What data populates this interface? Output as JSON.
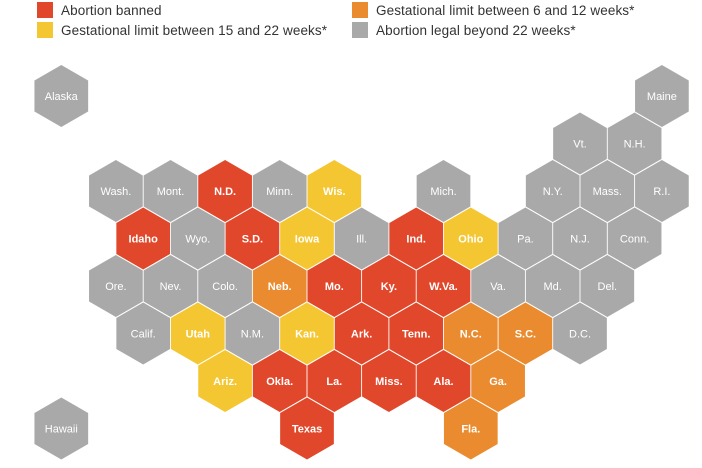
{
  "legend": [
    {
      "key": "banned",
      "label": "Abortion banned",
      "color": "#e0472b"
    },
    {
      "key": "limit_6_12",
      "label": "Gestational limit between 6 and 12 weeks*",
      "color": "#e98b2e"
    },
    {
      "key": "limit_15_22",
      "label": "Gestational limit between 15 and 22 weeks*",
      "color": "#f4c732"
    },
    {
      "key": "legal",
      "label": "Abortion legal beyond 22 weeks*",
      "color": "#a9a9a9"
    }
  ],
  "states": [
    {
      "abbr": "Alaska",
      "status": "legal",
      "col": 1,
      "row": 0
    },
    {
      "abbr": "Maine",
      "status": "legal",
      "col": 23,
      "row": 0
    },
    {
      "abbr": "Vt.",
      "status": "legal",
      "col": 20,
      "row": 1
    },
    {
      "abbr": "N.H.",
      "status": "legal",
      "col": 22,
      "row": 1
    },
    {
      "abbr": "Wash.",
      "status": "legal",
      "col": 3,
      "row": 2
    },
    {
      "abbr": "Mont.",
      "status": "legal",
      "col": 5,
      "row": 2
    },
    {
      "abbr": "N.D.",
      "status": "banned",
      "col": 7,
      "row": 2
    },
    {
      "abbr": "Minn.",
      "status": "legal",
      "col": 9,
      "row": 2
    },
    {
      "abbr": "Wis.",
      "status": "limit_15_22",
      "col": 11,
      "row": 2
    },
    {
      "abbr": "Mich.",
      "status": "legal",
      "col": 15,
      "row": 2
    },
    {
      "abbr": "N.Y.",
      "status": "legal",
      "col": 19,
      "row": 2
    },
    {
      "abbr": "Mass.",
      "status": "legal",
      "col": 21,
      "row": 2
    },
    {
      "abbr": "R.I.",
      "status": "legal",
      "col": 23,
      "row": 2
    },
    {
      "abbr": "Idaho",
      "status": "banned",
      "col": 4,
      "row": 3
    },
    {
      "abbr": "Wyo.",
      "status": "legal",
      "col": 6,
      "row": 3
    },
    {
      "abbr": "S.D.",
      "status": "banned",
      "col": 8,
      "row": 3
    },
    {
      "abbr": "Iowa",
      "status": "limit_15_22",
      "col": 10,
      "row": 3
    },
    {
      "abbr": "Ill.",
      "status": "legal",
      "col": 12,
      "row": 3
    },
    {
      "abbr": "Ind.",
      "status": "banned",
      "col": 14,
      "row": 3
    },
    {
      "abbr": "Ohio",
      "status": "limit_15_22",
      "col": 16,
      "row": 3
    },
    {
      "abbr": "Pa.",
      "status": "legal",
      "col": 18,
      "row": 3
    },
    {
      "abbr": "N.J.",
      "status": "legal",
      "col": 20,
      "row": 3
    },
    {
      "abbr": "Conn.",
      "status": "legal",
      "col": 22,
      "row": 3
    },
    {
      "abbr": "Ore.",
      "status": "legal",
      "col": 3,
      "row": 4
    },
    {
      "abbr": "Nev.",
      "status": "legal",
      "col": 5,
      "row": 4
    },
    {
      "abbr": "Colo.",
      "status": "legal",
      "col": 7,
      "row": 4
    },
    {
      "abbr": "Neb.",
      "status": "limit_6_12",
      "col": 9,
      "row": 4
    },
    {
      "abbr": "Mo.",
      "status": "banned",
      "col": 11,
      "row": 4
    },
    {
      "abbr": "Ky.",
      "status": "banned",
      "col": 13,
      "row": 4
    },
    {
      "abbr": "W.Va.",
      "status": "banned",
      "col": 15,
      "row": 4
    },
    {
      "abbr": "Va.",
      "status": "legal",
      "col": 17,
      "row": 4
    },
    {
      "abbr": "Md.",
      "status": "legal",
      "col": 19,
      "row": 4
    },
    {
      "abbr": "Del.",
      "status": "legal",
      "col": 21,
      "row": 4
    },
    {
      "abbr": "Calif.",
      "status": "legal",
      "col": 4,
      "row": 5
    },
    {
      "abbr": "Utah",
      "status": "limit_15_22",
      "col": 6,
      "row": 5
    },
    {
      "abbr": "N.M.",
      "status": "legal",
      "col": 8,
      "row": 5
    },
    {
      "abbr": "Kan.",
      "status": "limit_15_22",
      "col": 10,
      "row": 5
    },
    {
      "abbr": "Ark.",
      "status": "banned",
      "col": 12,
      "row": 5
    },
    {
      "abbr": "Tenn.",
      "status": "banned",
      "col": 14,
      "row": 5
    },
    {
      "abbr": "N.C.",
      "status": "limit_6_12",
      "col": 16,
      "row": 5
    },
    {
      "abbr": "S.C.",
      "status": "limit_6_12",
      "col": 18,
      "row": 5
    },
    {
      "abbr": "D.C.",
      "status": "legal",
      "col": 20,
      "row": 5
    },
    {
      "abbr": "Ariz.",
      "status": "limit_15_22",
      "col": 7,
      "row": 6
    },
    {
      "abbr": "Okla.",
      "status": "banned",
      "col": 9,
      "row": 6
    },
    {
      "abbr": "La.",
      "status": "banned",
      "col": 11,
      "row": 6
    },
    {
      "abbr": "Miss.",
      "status": "banned",
      "col": 13,
      "row": 6
    },
    {
      "abbr": "Ala.",
      "status": "banned",
      "col": 15,
      "row": 6
    },
    {
      "abbr": "Ga.",
      "status": "limit_6_12",
      "col": 17,
      "row": 6
    },
    {
      "abbr": "Hawaii",
      "status": "legal",
      "col": 1,
      "row": 7
    },
    {
      "abbr": "Texas",
      "status": "banned",
      "col": 10,
      "row": 7
    },
    {
      "abbr": "Fla.",
      "status": "limit_6_12",
      "col": 16,
      "row": 7
    }
  ]
}
